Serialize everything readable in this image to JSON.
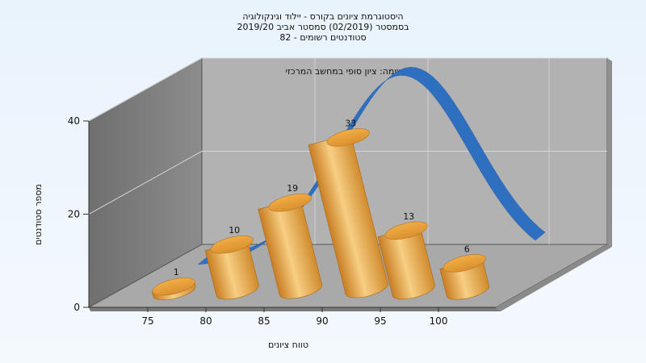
{
  "chart_data": {
    "type": "bar",
    "title": [
      "היסטוגרמת ציונים בקורס - יילוד וגינקולוגיה",
      "בסמסטר (02/2019) סמסטר אביב 2019/20",
      "סטודנטים רשומים - 82"
    ],
    "subtitle": "במשימה: ציון סופי במחשב המרכזי",
    "xlabel": "טווח ציונים",
    "ylabel": "מספר סטודנטים",
    "x_ticks": [
      "75",
      "80",
      "85",
      "90",
      "95",
      "100"
    ],
    "y_ticks": [
      "0",
      "20",
      "40"
    ],
    "ylim": [
      0,
      40
    ],
    "categories": [
      "75-80",
      "80-85",
      "85-90",
      "90-95",
      "95-100",
      "100+"
    ],
    "values": [
      1,
      10,
      19,
      33,
      13,
      6
    ],
    "data_labels": [
      "1",
      "10",
      "19",
      "33",
      "13",
      "6"
    ],
    "curve": "normal-distribution",
    "colors": {
      "bar": "#e0a040",
      "curve": "#2f6fc0",
      "wall": "#b0b0b0",
      "floor": "#a8a8a8"
    }
  }
}
